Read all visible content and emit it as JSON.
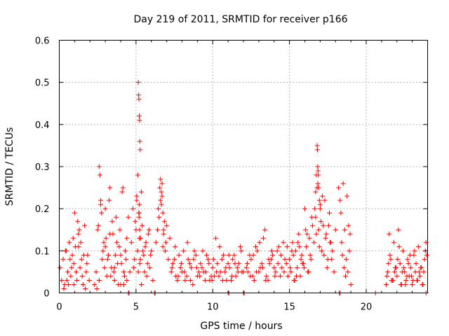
{
  "chart_data": {
    "type": "scatter",
    "title": "Day 219 of 2011, SRMTID for receiver p166",
    "xlabel": "GPS time / hours",
    "ylabel": "SRMTID / TECUs",
    "xlim": [
      0,
      24
    ],
    "ylim": [
      0,
      0.6
    ],
    "xticks": [
      0,
      5,
      10,
      15,
      20
    ],
    "xtick_labels": [
      "0",
      "5",
      "10",
      "15",
      "20"
    ],
    "yticks": [
      0,
      0.1,
      0.2,
      0.3,
      0.4,
      0.5,
      0.6
    ],
    "ytick_labels": [
      "0",
      "0.1",
      "0.2",
      "0.3",
      "0.4",
      "0.5",
      "0.6"
    ],
    "grid": true,
    "marker": "+",
    "color": "#ff0000",
    "series": [
      {
        "name": "SRMTID",
        "x": [
          0.05,
          0.15,
          0.25,
          0.35,
          0.45,
          0.55,
          0.65,
          0.75,
          0.85,
          0.95,
          1.05,
          1.15,
          1.25,
          1.35,
          1.45,
          1.55,
          1.65,
          1.75,
          1.85,
          1.95,
          0.3,
          0.6,
          0.9,
          1.2,
          1.5,
          1.8,
          0.4,
          0.8,
          1.1,
          1.4,
          1.7,
          0.5,
          1.0,
          1.3,
          1.6,
          0.7,
          1.25,
          0.95,
          2.3,
          2.4,
          2.5,
          2.6,
          2.7,
          2.8,
          2.9,
          3.0,
          3.1,
          3.2,
          3.3,
          3.4,
          3.5,
          3.6,
          3.7,
          3.8,
          3.9,
          4.0,
          4.1,
          4.2,
          4.3,
          4.4,
          2.45,
          2.55,
          2.65,
          2.75,
          2.85,
          2.95,
          3.05,
          3.15,
          3.25,
          3.35,
          3.45,
          3.55,
          3.65,
          3.75,
          3.85,
          3.95,
          4.05,
          4.15,
          4.25,
          4.35,
          2.6,
          2.7,
          3.0,
          3.3,
          3.6,
          4.0,
          4.2,
          4.4,
          4.5,
          4.6,
          4.7,
          4.8,
          4.9,
          5.0,
          5.05,
          5.1,
          5.15,
          5.2,
          5.25,
          5.3,
          5.35,
          5.4,
          5.5,
          5.6,
          5.7,
          5.8,
          5.9,
          6.0,
          6.1,
          4.85,
          4.95,
          5.05,
          5.12,
          5.18,
          5.22,
          5.28,
          5.35,
          5.45,
          5.55,
          5.65,
          5.75,
          5.85,
          5.95,
          5.15,
          5.17,
          5.19,
          5.21,
          5.23,
          5.25,
          5.27,
          5.2,
          5.22,
          5.24,
          6.3,
          6.4,
          6.5,
          6.6,
          6.7,
          6.8,
          6.9,
          7.0,
          7.1,
          7.2,
          6.45,
          6.55,
          6.65,
          6.75,
          6.85,
          6.95,
          6.6,
          6.7,
          6.8,
          6.65,
          6.75,
          7.3,
          7.5,
          7.7,
          7.9,
          8.1,
          8.3,
          8.5,
          8.7,
          8.9,
          9.1,
          9.3,
          9.5,
          9.7,
          9.9,
          7.4,
          7.6,
          7.8,
          8.0,
          8.2,
          8.4,
          8.6,
          8.8,
          9.0,
          9.2,
          9.4,
          9.6,
          9.8,
          7.35,
          7.55,
          7.75,
          7.95,
          8.15,
          8.35,
          8.55,
          8.75,
          8.95,
          9.15,
          9.35,
          9.55,
          9.75,
          9.95,
          10.0,
          10.2,
          10.4,
          10.6,
          10.8,
          11.0,
          11.2,
          11.4,
          11.6,
          11.8,
          12.0,
          10.1,
          10.3,
          10.5,
          10.7,
          10.9,
          11.1,
          11.3,
          11.5,
          11.7,
          11.9,
          10.05,
          10.25,
          10.45,
          10.65,
          10.85,
          11.05,
          11.25,
          11.45,
          11.65,
          11.85,
          12.2,
          12.4,
          12.6,
          12.8,
          13.0,
          13.2,
          13.4,
          13.6,
          13.8,
          14.0,
          14.2,
          14.4,
          14.6,
          14.8,
          12.3,
          12.5,
          12.7,
          12.9,
          13.1,
          13.3,
          13.5,
          13.7,
          13.9,
          14.1,
          14.3,
          14.5,
          14.7,
          14.9,
          12.25,
          12.45,
          12.65,
          12.85,
          13.05,
          13.25,
          13.45,
          13.65,
          13.85,
          14.05,
          14.25,
          14.45,
          14.65,
          14.85,
          15.0,
          15.1,
          15.2,
          15.3,
          15.4,
          15.5,
          15.6,
          15.7,
          15.8,
          15.9,
          16.0,
          16.1,
          16.2,
          16.3,
          16.4,
          16.5,
          15.05,
          15.25,
          15.45,
          15.65,
          15.85,
          16.05,
          16.25,
          16.45,
          15.15,
          15.35,
          15.55,
          15.75,
          15.95,
          16.15,
          16.35,
          16.6,
          16.7,
          16.8,
          16.9,
          17.0,
          17.1,
          17.2,
          17.3,
          17.4,
          17.5,
          17.6,
          17.7,
          17.8,
          17.9,
          18.0,
          16.65,
          16.75,
          16.85,
          16.95,
          17.05,
          17.15,
          17.25,
          17.35,
          17.45,
          17.55,
          17.65,
          17.75,
          16.8,
          16.82,
          16.84,
          16.86,
          16.88,
          16.9,
          16.75,
          16.7,
          16.95,
          17.0,
          18.2,
          18.3,
          18.4,
          18.5,
          18.6,
          18.7,
          18.8,
          18.9,
          19.0,
          18.35,
          18.55,
          18.75,
          18.95,
          18.45,
          18.65,
          18.85,
          21.3,
          21.4,
          21.5,
          21.6,
          21.7,
          21.8,
          21.9,
          22.0,
          22.1,
          22.2,
          22.3,
          22.4,
          22.5,
          22.6,
          22.7,
          22.8,
          22.9,
          23.0,
          23.1,
          23.2,
          23.3,
          23.4,
          23.5,
          23.6,
          23.7,
          23.8,
          23.9,
          21.35,
          21.55,
          21.75,
          21.95,
          22.15,
          22.35,
          22.55,
          22.75,
          22.95,
          23.15,
          23.35,
          23.55,
          23.75,
          23.95,
          21.45,
          21.65,
          21.85,
          22.05,
          22.25,
          22.45,
          22.65,
          22.85,
          23.05,
          23.25,
          23.45,
          23.65,
          23.85,
          4.55,
          6.2,
          12.0,
          11.0,
          18.3,
          20.6,
          23.9,
          4.5,
          6.25,
          11.05,
          12.05,
          18.25
        ],
        "y": [
          0.06,
          0.03,
          0.08,
          0.02,
          0.1,
          0.05,
          0.12,
          0.04,
          0.09,
          0.07,
          0.11,
          0.03,
          0.14,
          0.06,
          0.08,
          0.02,
          0.16,
          0.05,
          0.09,
          0.03,
          0.01,
          0.02,
          0.13,
          0.17,
          0.04,
          0.07,
          0.1,
          0.06,
          0.05,
          0.12,
          0.01,
          0.03,
          0.19,
          0.15,
          0.09,
          0.08,
          0.11,
          0.02,
          0.02,
          0.05,
          0.15,
          0.3,
          0.22,
          0.08,
          0.12,
          0.2,
          0.04,
          0.09,
          0.25,
          0.06,
          0.14,
          0.03,
          0.18,
          0.07,
          0.11,
          0.02,
          0.24,
          0.05,
          0.1,
          0.03,
          0.01,
          0.16,
          0.28,
          0.19,
          0.1,
          0.06,
          0.13,
          0.08,
          0.22,
          0.04,
          0.17,
          0.05,
          0.09,
          0.12,
          0.02,
          0.15,
          0.07,
          0.25,
          0.04,
          0.08,
          0.03,
          0.21,
          0.11,
          0.14,
          0.06,
          0.09,
          0.02,
          0.13,
          0.18,
          0.05,
          0.12,
          0.2,
          0.08,
          0.15,
          0.23,
          0.1,
          0.05,
          0.18,
          0.07,
          0.13,
          0.02,
          0.16,
          0.09,
          0.11,
          0.04,
          0.14,
          0.06,
          0.1,
          0.03,
          0.06,
          0.17,
          0.22,
          0.28,
          0.19,
          0.13,
          0.08,
          0.24,
          0.1,
          0.05,
          0.12,
          0.07,
          0.15,
          0.09,
          0.5,
          0.47,
          0.46,
          0.42,
          0.41,
          0.36,
          0.34,
          0.19,
          0.21,
          0.15,
          0.12,
          0.15,
          0.18,
          0.22,
          0.26,
          0.14,
          0.1,
          0.16,
          0.08,
          0.13,
          0.2,
          0.25,
          0.24,
          0.19,
          0.17,
          0.12,
          0.27,
          0.23,
          0.15,
          0.21,
          0.11,
          0.05,
          0.08,
          0.03,
          0.06,
          0.1,
          0.04,
          0.07,
          0.02,
          0.09,
          0.05,
          0.06,
          0.03,
          0.08,
          0.04,
          0.07,
          0.04,
          0.09,
          0.05,
          0.03,
          0.08,
          0.06,
          0.1,
          0.04,
          0.07,
          0.05,
          0.09,
          0.03,
          0.06,
          0.11,
          0.04,
          0.07,
          0.05,
          0.12,
          0.03,
          0.08,
          0.06,
          0.04,
          0.1,
          0.05,
          0.07,
          0.03,
          0.06,
          0.13,
          0.04,
          0.08,
          0.05,
          0.07,
          0.03,
          0.09,
          0.06,
          0.11,
          0.05,
          0.04,
          0.07,
          0.05,
          0.09,
          0.03,
          0.06,
          0.08,
          0.04,
          0.07,
          0.05,
          0.08,
          0.05,
          0.11,
          0.03,
          0.06,
          0.09,
          0.04,
          0.07,
          0.05,
          0.1,
          0.06,
          0.09,
          0.04,
          0.11,
          0.05,
          0.07,
          0.15,
          0.03,
          0.08,
          0.06,
          0.1,
          0.04,
          0.12,
          0.07,
          0.05,
          0.08,
          0.03,
          0.1,
          0.06,
          0.13,
          0.04,
          0.07,
          0.09,
          0.05,
          0.11,
          0.06,
          0.08,
          0.04,
          0.07,
          0.04,
          0.09,
          0.05,
          0.12,
          0.06,
          0.03,
          0.08,
          0.1,
          0.04,
          0.07,
          0.09,
          0.05,
          0.11,
          0.08,
          0.05,
          0.12,
          0.03,
          0.1,
          0.06,
          0.14,
          0.04,
          0.09,
          0.07,
          0.2,
          0.11,
          0.05,
          0.13,
          0.08,
          0.16,
          0.06,
          0.09,
          0.04,
          0.11,
          0.07,
          0.15,
          0.05,
          0.18,
          0.1,
          0.03,
          0.12,
          0.08,
          0.06,
          0.14,
          0.09,
          0.12,
          0.18,
          0.25,
          0.15,
          0.2,
          0.1,
          0.16,
          0.22,
          0.14,
          0.08,
          0.19,
          0.12,
          0.1,
          0.05,
          0.15,
          0.2,
          0.14,
          0.26,
          0.11,
          0.17,
          0.23,
          0.09,
          0.13,
          0.06,
          0.16,
          0.12,
          0.08,
          0.35,
          0.34,
          0.3,
          0.29,
          0.28,
          0.25,
          0.28,
          0.24,
          0.22,
          0.21,
          0.25,
          0.22,
          0.12,
          0.26,
          0.15,
          0.08,
          0.05,
          0.1,
          0.02,
          0.19,
          0.06,
          0.23,
          0.14,
          0.09,
          0.04,
          0.16,
          0.02,
          0.05,
          0.14,
          0.08,
          0.03,
          0.12,
          0.06,
          0.04,
          0.15,
          0.07,
          0.02,
          0.1,
          0.05,
          0.03,
          0.08,
          0.04,
          0.06,
          0.02,
          0.09,
          0.05,
          0.03,
          0.11,
          0.04,
          0.06,
          0.02,
          0.08,
          0.12,
          0.04,
          0.09,
          0.03,
          0.06,
          0.11,
          0.05,
          0.02,
          0.07,
          0.04,
          0.1,
          0.03,
          0.06,
          0.05,
          0.09,
          0.07,
          0.03,
          0.05,
          0.08,
          0.02,
          0.06,
          0.04,
          0.09,
          0.03,
          0.07,
          0.05,
          0.02,
          0.1,
          0.0,
          0.0,
          0.0,
          0.0,
          0.0,
          0.0,
          0.0,
          0.0,
          0.0,
          0.0,
          0.0,
          0.0
        ]
      }
    ]
  }
}
